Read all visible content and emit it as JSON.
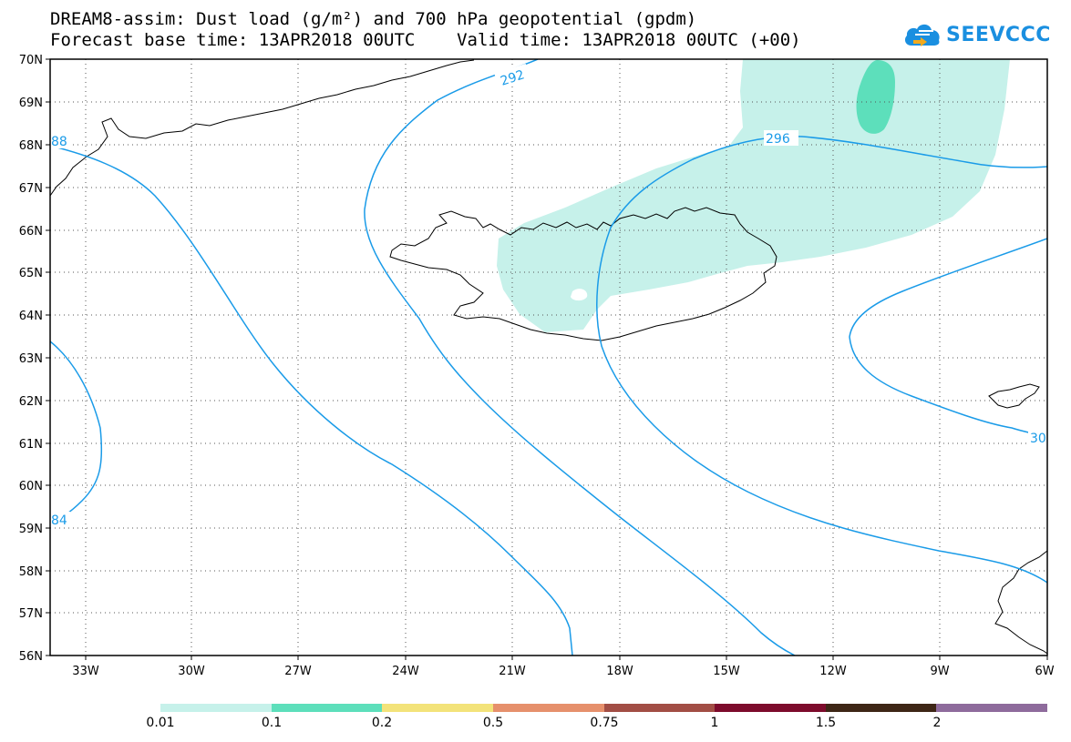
{
  "header": {
    "title_line1": "DREAM8-assim: Dust load (g/m²) and 700 hPa geopotential (gpdm)",
    "title_line2": "Forecast base time: 13APR2018 00UTC    Valid time: 13APR2018 00UTC (+00)",
    "logo_text": "SEEVCCC",
    "logo_icon": "cloud-icon"
  },
  "map": {
    "lat_labels": [
      "70N",
      "69N",
      "68N",
      "67N",
      "66N",
      "65N",
      "64N",
      "63N",
      "62N",
      "61N",
      "60N",
      "59N",
      "58N",
      "57N",
      "56N"
    ],
    "lon_labels": [
      "33W",
      "30W",
      "27W",
      "24W",
      "21W",
      "18W",
      "15W",
      "12W",
      "9W",
      "6W"
    ],
    "contour_labels": [
      "292",
      "296",
      "88",
      "30",
      "84"
    ],
    "contour_color": "#1a9be8",
    "coast_color": "#000000"
  },
  "legend": {
    "colors": [
      "#c6f1ea",
      "#5ddfbb",
      "#f3e37a",
      "#e6906c",
      "#a24e45",
      "#7d0b2c",
      "#3e2616",
      "#8e6b9c"
    ],
    "ticks": [
      "0.01",
      "0.1",
      "0.2",
      "0.5",
      "0.75",
      "1",
      "1.5",
      "2"
    ]
  }
}
